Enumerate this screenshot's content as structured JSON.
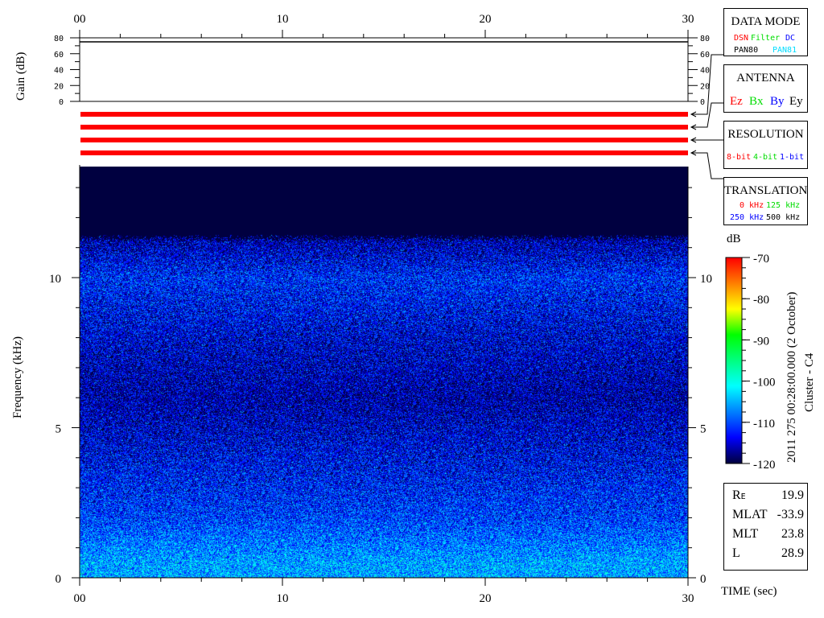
{
  "chart_data": {
    "type": "heatmap",
    "xlabel": "TIME (sec)",
    "ylabel": "Frequency (kHz)",
    "xlim": [
      0,
      30
    ],
    "ylim": [
      0,
      13.7
    ],
    "x_ticks": [
      "00",
      "10",
      "20",
      "30"
    ],
    "y_ticks": [
      "0",
      "5",
      "10"
    ],
    "colorbar": {
      "label": "dB",
      "range": [
        -120,
        -70
      ],
      "ticks": [
        "-70",
        "-80",
        "-90",
        "-100",
        "-110",
        "-120"
      ],
      "colors": [
        "#000040",
        "#0000ff",
        "#0080ff",
        "#00ffff",
        "#00ff80",
        "#00ff00",
        "#ffff00",
        "#ff8000",
        "#ff0000"
      ]
    },
    "intensity_profile_db": [
      {
        "freq_khz": 0.5,
        "level": -106
      },
      {
        "freq_khz": 2,
        "level": -111
      },
      {
        "freq_khz": 4,
        "level": -114
      },
      {
        "freq_khz": 6,
        "level": -117
      },
      {
        "freq_khz": 8,
        "level": -115
      },
      {
        "freq_khz": 10,
        "level": -112
      },
      {
        "freq_khz": 11,
        "level": -116
      },
      {
        "freq_khz": 12.5,
        "level": -120
      }
    ],
    "gain_panel": {
      "ylabel": "Gain (dB)",
      "ylim": [
        0,
        80
      ],
      "ticks": [
        "80",
        "60",
        "40",
        "20",
        "0"
      ],
      "value": 75
    },
    "resolution_bars": 4
  },
  "side_title": "2011 275 00:28:00.000 (2 October)",
  "side_subtitle": "Cluster - C4",
  "data_mode": {
    "title": "DATA MODE",
    "items": [
      {
        "text": "DSN",
        "color": "#ff0000"
      },
      {
        "text": "Filter",
        "color": "#00e000"
      },
      {
        "text": "DC",
        "color": "#0000ff"
      },
      {
        "text": "PAN80",
        "color": "#000000"
      },
      {
        "text": "PAN81",
        "color": "#00e0ff"
      }
    ]
  },
  "antenna": {
    "title": "ANTENNA",
    "items": [
      {
        "text": "Ez",
        "color": "#ff0000"
      },
      {
        "text": "Bx",
        "color": "#00e000"
      },
      {
        "text": "By",
        "color": "#0000ff"
      },
      {
        "text": "Ey",
        "color": "#000000"
      }
    ]
  },
  "resolution": {
    "title": "RESOLUTION",
    "items": [
      {
        "text": "8-bit",
        "color": "#ff0000"
      },
      {
        "text": "4-bit",
        "color": "#00e000"
      },
      {
        "text": "1-bit",
        "color": "#0000ff"
      }
    ]
  },
  "translation": {
    "title": "TRANSLATION",
    "items": [
      {
        "text": "0 kHz",
        "color": "#ff0000"
      },
      {
        "text": "125 kHz",
        "color": "#00e000"
      },
      {
        "text": "250 kHz",
        "color": "#0000ff"
      },
      {
        "text": "500 kHz",
        "color": "#000000"
      }
    ]
  },
  "orbit": [
    {
      "label": "R",
      "sub": "E",
      "value": "19.9"
    },
    {
      "label": "MLAT",
      "sub": "",
      "value": "-33.9"
    },
    {
      "label": "MLT",
      "sub": "",
      "value": "23.8"
    },
    {
      "label": "L",
      "sub": "",
      "value": "28.9"
    }
  ]
}
